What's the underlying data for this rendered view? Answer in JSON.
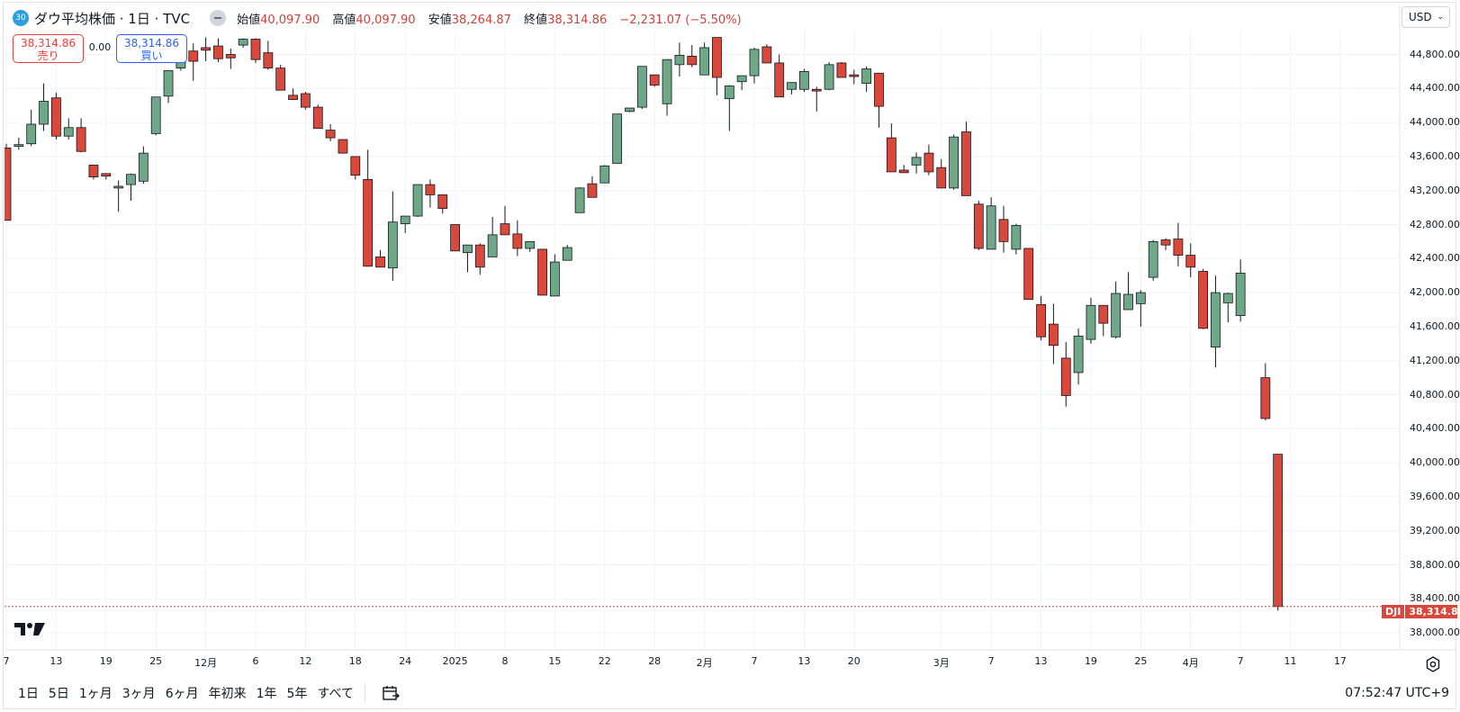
{
  "header": {
    "badge": "30",
    "title": "ダウ平均株価 · 1日 · TVC",
    "ohlc": [
      {
        "label": "始値",
        "value": "40,097.90"
      },
      {
        "label": "高値",
        "value": "40,097.90"
      },
      {
        "label": "安値",
        "value": "38,264.87"
      },
      {
        "label": "終値",
        "value": "38,314.86"
      }
    ],
    "change": "−2,231.07 (−5.50%)"
  },
  "trade": {
    "sell_price": "38,314.86",
    "sell_label": "売り",
    "spread": "0.00",
    "buy_price": "38,314.86",
    "buy_label": "買い"
  },
  "currency": "USD",
  "price_tag": {
    "symbol": "DJI",
    "value": "38,314.86"
  },
  "colors": {
    "up": "#6ea886",
    "down": "#d8483b",
    "grid": "#f0f3fa",
    "line": "#e0e3eb",
    "current_price": "#d8483b"
  },
  "ranges": [
    "1日",
    "5日",
    "1ヶ月",
    "3ヶ月",
    "6ヶ月",
    "年初来",
    "1年",
    "5年",
    "すべて"
  ],
  "clock": "07:52:47 UTC+9",
  "icons": {
    "calendar": "calendar-icon",
    "settings": "settings-icon",
    "logo": "tradingview-logo"
  },
  "chart_data": {
    "type": "candlestick",
    "y_ticks": [
      "44,800.00",
      "44,400.00",
      "44,000.00",
      "43,600.00",
      "43,200.00",
      "42,800.00",
      "42,400.00",
      "42,000.00",
      "41,600.00",
      "41,200.00",
      "40,800.00",
      "40,400.00",
      "40,000.00",
      "39,600.00",
      "39,200.00",
      "38,800.00",
      "38,400.00",
      "38,000.00"
    ],
    "y_tick_values": [
      44800,
      44400,
      44000,
      43600,
      43200,
      42800,
      42400,
      42000,
      41600,
      41200,
      40800,
      40400,
      40000,
      39600,
      39200,
      38800,
      38400,
      38000
    ],
    "x_ticks": [
      {
        "label": "7",
        "index": 0
      },
      {
        "label": "13",
        "index": 4
      },
      {
        "label": "19",
        "index": 8
      },
      {
        "label": "25",
        "index": 12
      },
      {
        "label": "12月",
        "index": 16
      },
      {
        "label": "6",
        "index": 20
      },
      {
        "label": "12",
        "index": 24
      },
      {
        "label": "18",
        "index": 28
      },
      {
        "label": "24",
        "index": 32
      },
      {
        "label": "2025",
        "index": 36
      },
      {
        "label": "8",
        "index": 40
      },
      {
        "label": "15",
        "index": 44
      },
      {
        "label": "22",
        "index": 48
      },
      {
        "label": "28",
        "index": 52
      },
      {
        "label": "2月",
        "index": 56
      },
      {
        "label": "7",
        "index": 60
      },
      {
        "label": "13",
        "index": 64
      },
      {
        "label": "20",
        "index": 68
      },
      {
        "label": "3月",
        "index": 75
      },
      {
        "label": "7",
        "index": 79
      },
      {
        "label": "13",
        "index": 83
      },
      {
        "label": "19",
        "index": 87
      },
      {
        "label": "25",
        "index": 91
      },
      {
        "label": "4月",
        "index": 95
      },
      {
        "label": "7",
        "index": 99
      },
      {
        "label": "11",
        "index": 103
      },
      {
        "label": "17",
        "index": 107
      }
    ],
    "candles": [
      [
        43700,
        43750,
        42850,
        42850
      ],
      [
        43720,
        43820,
        43680,
        43740
      ],
      [
        43750,
        44150,
        43720,
        43980
      ],
      [
        43980,
        44460,
        43900,
        44250
      ],
      [
        44290,
        44350,
        43800,
        43840
      ],
      [
        43840,
        44050,
        43800,
        43940
      ],
      [
        43940,
        44050,
        43650,
        43660
      ],
      [
        43500,
        43500,
        43330,
        43360
      ],
      [
        43400,
        43400,
        43330,
        43370
      ],
      [
        43230,
        43320,
        42950,
        43250
      ],
      [
        43270,
        43400,
        43080,
        43390
      ],
      [
        43310,
        43720,
        43280,
        43640
      ],
      [
        43870,
        44300,
        43850,
        44300
      ],
      [
        44310,
        44610,
        44230,
        44610
      ],
      [
        44640,
        44860,
        44610,
        44860
      ],
      [
        44840,
        44930,
        44490,
        44720
      ],
      [
        44880,
        45000,
        44720,
        44850
      ],
      [
        44900,
        44990,
        44710,
        44750
      ],
      [
        44800,
        44870,
        44630,
        44760
      ],
      [
        44910,
        44990,
        44880,
        44980
      ],
      [
        44980,
        44990,
        44700,
        44740
      ],
      [
        44820,
        44960,
        44620,
        44640
      ],
      [
        44640,
        44680,
        44380,
        44380
      ],
      [
        44320,
        44400,
        44290,
        44270
      ],
      [
        44340,
        44360,
        44150,
        44180
      ],
      [
        44180,
        44210,
        43930,
        43930
      ],
      [
        43910,
        43980,
        43780,
        43820
      ],
      [
        43800,
        43800,
        43640,
        43640
      ],
      [
        43600,
        43600,
        43330,
        43380
      ],
      [
        43330,
        43680,
        42310,
        42310
      ],
      [
        42420,
        42500,
        42300,
        42300
      ],
      [
        42290,
        43190,
        42140,
        42830
      ],
      [
        42810,
        42900,
        42700,
        42900
      ],
      [
        42900,
        43270,
        42890,
        43270
      ],
      [
        43270,
        43330,
        43000,
        43150
      ],
      [
        43150,
        43150,
        42930,
        42990
      ],
      [
        42800,
        42800,
        42490,
        42490
      ],
      [
        42470,
        42540,
        42240,
        42560
      ],
      [
        42560,
        42580,
        42210,
        42300
      ],
      [
        42420,
        42890,
        42420,
        42680
      ],
      [
        42810,
        43020,
        42680,
        42680
      ],
      [
        42690,
        42850,
        42430,
        42520
      ],
      [
        42520,
        42600,
        42480,
        42600
      ],
      [
        42510,
        42510,
        42020,
        41970
      ],
      [
        41960,
        42450,
        41970,
        42360
      ],
      [
        42380,
        42560,
        42380,
        42530
      ],
      [
        42940,
        43240,
        42940,
        43230
      ],
      [
        43280,
        43370,
        43120,
        43120
      ],
      [
        43290,
        43500,
        43290,
        43490
      ],
      [
        43520,
        44090,
        43520,
        44100
      ],
      [
        44130,
        44150,
        44120,
        44170
      ],
      [
        44180,
        44660,
        44160,
        44660
      ],
      [
        44560,
        44550,
        44420,
        44440
      ],
      [
        44220,
        44230,
        44080,
        44740
      ],
      [
        44680,
        44940,
        44540,
        44790
      ],
      [
        44780,
        44910,
        44650,
        44680
      ],
      [
        44560,
        44940,
        44590,
        44880
      ],
      [
        45000,
        45000,
        44320,
        44530
      ],
      [
        44280,
        44440,
        43900,
        44430
      ],
      [
        44480,
        44550,
        44380,
        44550
      ],
      [
        44550,
        44880,
        44460,
        44860
      ],
      [
        44890,
        44920,
        44770,
        44700
      ],
      [
        44700,
        44800,
        44320,
        44300
      ],
      [
        44390,
        44400,
        44330,
        44470
      ],
      [
        44390,
        44630,
        44360,
        44600
      ],
      [
        44390,
        44420,
        44130,
        44370
      ],
      [
        44390,
        44710,
        44380,
        44680
      ],
      [
        44700,
        44710,
        44540,
        44530
      ],
      [
        44560,
        44620,
        44450,
        44540
      ],
      [
        44460,
        44660,
        44360,
        44630
      ],
      [
        44580,
        44580,
        43940,
        44190
      ],
      [
        43820,
        43990,
        43830,
        43420
      ],
      [
        43440,
        43500,
        43410,
        43410
      ],
      [
        43500,
        43650,
        43400,
        43590
      ],
      [
        43640,
        43740,
        43380,
        43420
      ],
      [
        43470,
        43570,
        43230,
        43230
      ],
      [
        43230,
        43860,
        43210,
        43830
      ],
      [
        43890,
        44010,
        43140,
        43140
      ],
      [
        43040,
        43080,
        42500,
        42520
      ],
      [
        42510,
        43120,
        42550,
        43020
      ],
      [
        42860,
        43020,
        42470,
        42600
      ],
      [
        42510,
        42810,
        42450,
        42790
      ],
      [
        42520,
        42520,
        42010,
        41920
      ],
      [
        41860,
        41960,
        41440,
        41480
      ],
      [
        41630,
        41870,
        41160,
        41380
      ],
      [
        41230,
        41420,
        40660,
        40790
      ],
      [
        41060,
        41580,
        40920,
        41490
      ],
      [
        41450,
        41940,
        41400,
        41850
      ],
      [
        41850,
        41850,
        41490,
        41640
      ],
      [
        41480,
        42130,
        41460,
        41990
      ],
      [
        41800,
        42240,
        41810,
        41980
      ],
      [
        41870,
        42030,
        41600,
        42000
      ],
      [
        42180,
        42620,
        42140,
        42600
      ],
      [
        42620,
        42640,
        42500,
        42560
      ],
      [
        42630,
        42820,
        42310,
        42440
      ],
      [
        42440,
        42580,
        42180,
        42300
      ],
      [
        42250,
        42280,
        41570,
        41580
      ],
      [
        41360,
        42200,
        41120,
        42000
      ],
      [
        41880,
        42000,
        41650,
        41990
      ],
      [
        41730,
        42390,
        41660,
        42230
      ],
      [
        null,
        null,
        null,
        null
      ],
      [
        41000,
        41170,
        40500,
        40520
      ],
      [
        40100,
        40100,
        38260,
        38310
      ]
    ]
  }
}
